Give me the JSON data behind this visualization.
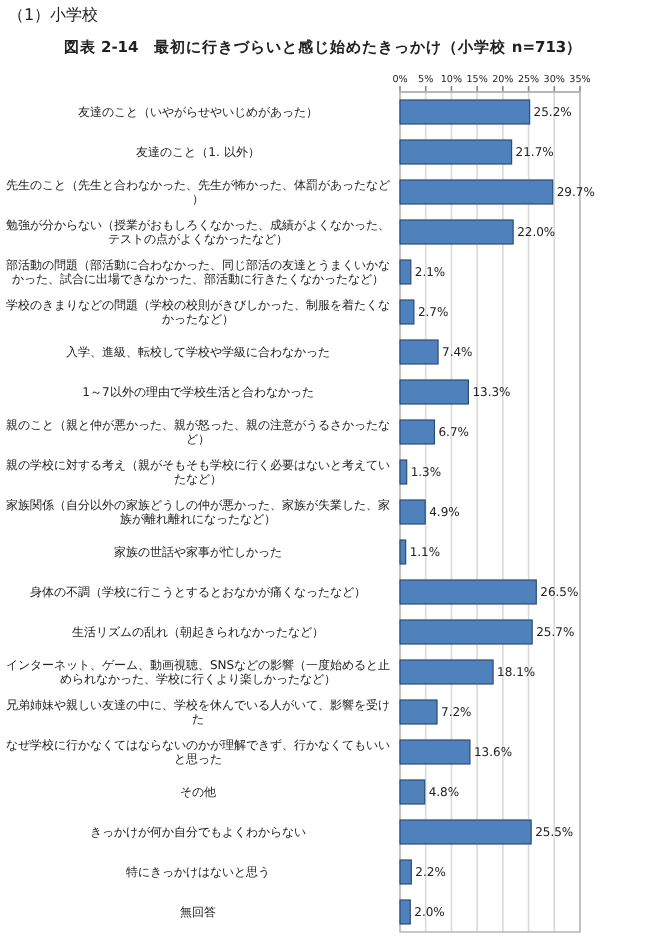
{
  "chart_data": {
    "type": "bar",
    "orientation": "horizontal",
    "title": "図表 2-14　最初に行きづらいと感じ始めたきっかけ（小学校 n=713）",
    "annotations": [
      "（1）小学校"
    ],
    "categories": [
      "友達のこと（いやがらせやいじめがあった）",
      "友達のこと（1. 以外）",
      "先生のこと（先生と合わなかった、先生が怖かった、体罰があったなど）",
      "勉強が分からない（授業がおもしろくなかった、成績がよくなかった、テストの点がよくなかったなど）",
      "部活動の問題（部活動に合わなかった、同じ部活の友達とうまくいかなかった、試合に出場できなかった、部活動に行きたくなかったなど）",
      "学校のきまりなどの問題（学校の校則がきびしかった、制服を着たくなかったなど）",
      "入学、進級、転校して学校や学級に合わなかった",
      "1～7以外の理由で学校生活と合わなかった",
      "親のこと（親と仲が悪かった、親が怒った、親の注意がうるさかったなど）",
      "親の学校に対する考え（親がそもそも学校に行く必要はないと考えていたなど）",
      "家族関係（自分以外の家族どうしの仲が悪かった、家族が失業した、家族が離れ離れになったなど）",
      "家族の世話や家事が忙しかった",
      "身体の不調（学校に行こうとするとおなかが痛くなったなど）",
      "生活リズムの乱れ（朝起きられなかったなど）",
      "インターネット、ゲーム、動画視聴、SNSなどの影響（一度始めると止められなかった、学校に行くより楽しかったなど）",
      "兄弟姉妹や親しい友達の中に、学校を休んでいる人がいて、影響を受けた",
      "なぜ学校に行かなくてはならないのかが理解できず、行かなくてもいいと思った",
      "その他",
      "きっかけが何か自分でもよくわからない",
      "特にきっかけはないと思う",
      "無回答"
    ],
    "values": [
      25.2,
      21.7,
      29.7,
      22.0,
      2.1,
      2.7,
      7.4,
      13.3,
      6.7,
      1.3,
      4.9,
      1.1,
      26.5,
      25.7,
      18.1,
      7.2,
      13.6,
      4.8,
      25.5,
      2.2,
      2.0
    ],
    "value_labels": [
      "25.2%",
      "21.7%",
      "29.7%",
      "22.0%",
      "2.1%",
      "2.7%",
      "7.4%",
      "13.3%",
      "6.7%",
      "1.3%",
      "4.9%",
      "1.1%",
      "26.5%",
      "25.7%",
      "18.1%",
      "7.2%",
      "13.6%",
      "4.8%",
      "25.5%",
      "2.2%",
      "2.0%"
    ],
    "color": "#4f81bd",
    "xlim": [
      0,
      35
    ],
    "xticks": [
      {
        "value": 0,
        "label": "0%"
      },
      {
        "value": 5,
        "label": "5%"
      },
      {
        "value": 10,
        "label": "10%"
      },
      {
        "value": 15,
        "label": "15%"
      },
      {
        "value": 20,
        "label": "20%"
      },
      {
        "value": 25,
        "label": "25%"
      },
      {
        "value": 30,
        "label": "30%"
      },
      {
        "value": 35,
        "label": "35%"
      }
    ],
    "grid": "x"
  }
}
